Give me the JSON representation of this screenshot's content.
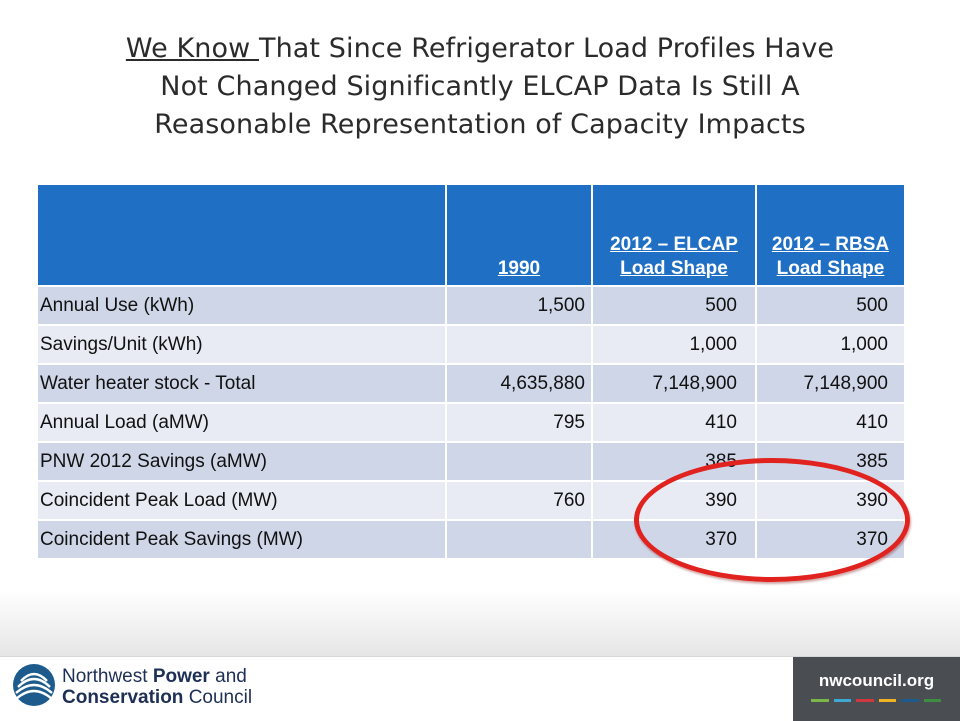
{
  "title": {
    "underlined_part": "We Know ",
    "line1_rest": "That Since Refrigerator Load Profiles Have",
    "line2": "Not Changed Significantly ELCAP Data Is Still A",
    "line3": "Reasonable Representation of Capacity Impacts"
  },
  "table": {
    "headers": [
      "",
      "1990",
      "2012 – ELCAP Load Shape",
      "2012 – RBSA Load Shape"
    ],
    "rows": [
      [
        "Annual Use (kWh)",
        "1,500",
        "500",
        "500"
      ],
      [
        "Savings/Unit (kWh)",
        "",
        "1,000",
        "1,000"
      ],
      [
        "Water heater stock - Total",
        "4,635,880",
        "7,148,900",
        "7,148,900"
      ],
      [
        "Annual Load (aMW)",
        "795",
        "410",
        "410"
      ],
      [
        "PNW 2012 Savings (aMW)",
        "",
        "385",
        "385"
      ],
      [
        "Coincident Peak Load (MW)",
        "760",
        "390",
        "390"
      ],
      [
        "Coincident Peak Savings (MW)",
        "",
        "370",
        "370"
      ]
    ]
  },
  "footer": {
    "org_line1": "Northwest ",
    "org_line1_bold": "Power",
    "org_line1_end": " and",
    "org_line2_bold": "Conservation",
    "org_line2_end": " Council",
    "site": "nwcouncil.org",
    "logo_icon": "nwcouncil-globe-icon",
    "stripe_colors": [
      "#7ab648",
      "#3fa9d6",
      "#d1373f",
      "#f0b323",
      "#1d5b8c",
      "#3e8e41"
    ]
  },
  "colors": {
    "header_bg": "#1f6fc5",
    "row_odd": "#cfd6e8",
    "row_even": "#e8ebf4",
    "highlight": "#e0231f"
  }
}
